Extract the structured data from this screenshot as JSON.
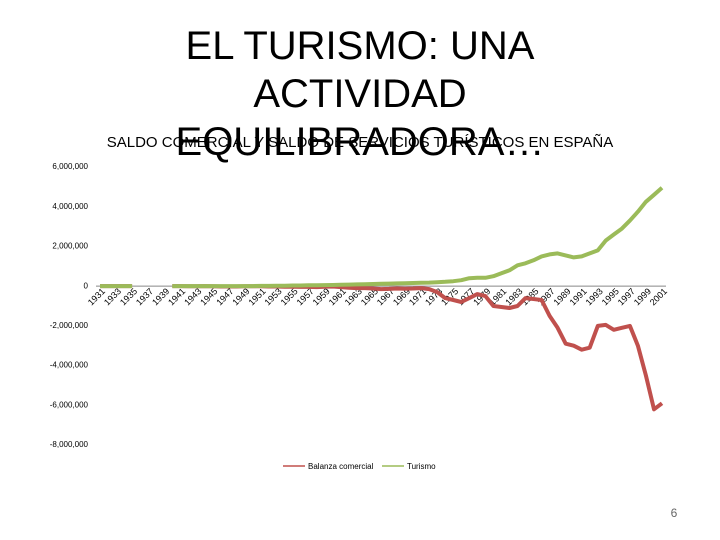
{
  "slide": {
    "title": "EL TURISMO: UNA ACTIVIDAD EQUILIBRADORA…",
    "page_number": "6"
  },
  "chart_data": {
    "type": "line",
    "title": "SALDO COMERCIAL Y SALDO DE SERVICIOS TURÍSTICOS EN ESPAÑA",
    "categories": [
      "1931",
      null,
      "1933",
      null,
      "1935",
      null,
      "1937",
      null,
      "1939",
      null,
      "1941",
      null,
      "1943",
      null,
      "1945",
      null,
      "1947",
      null,
      "1949",
      null,
      "1951",
      null,
      "1953",
      null,
      "1955",
      null,
      "1957",
      null,
      "1959",
      null,
      "1961",
      null,
      "1963",
      null,
      "1965",
      null,
      "1967",
      null,
      "1969",
      null,
      "1971",
      null,
      "1973",
      null,
      "1975",
      null,
      "1977",
      null,
      "1979",
      null,
      "1981",
      null,
      "1983",
      null,
      "1985",
      null,
      "1987",
      null,
      "1989",
      null,
      "1991",
      null,
      "1993",
      null,
      "1995",
      null,
      "1997",
      null,
      "1999",
      null,
      "2001"
    ],
    "series": [
      {
        "name": "Balanza comercial",
        "color": "#c0504d",
        "values": [
          0,
          0,
          0,
          0,
          0,
          null,
          null,
          null,
          null,
          0,
          0,
          -10000,
          -10000,
          0,
          -10000,
          -20000,
          -20000,
          -20000,
          -10000,
          -10000,
          -10000,
          -20000,
          -20000,
          -30000,
          -30000,
          -40000,
          -40000,
          -50000,
          -30000,
          -20000,
          -50000,
          -80000,
          -100000,
          -100000,
          -120000,
          -150000,
          -140000,
          -120000,
          -130000,
          -120000,
          -100000,
          -150000,
          -300000,
          -600000,
          -700000,
          -800000,
          -600000,
          -400000,
          -500000,
          -1000000,
          -1050000,
          -1100000,
          -1000000,
          -600000,
          -650000,
          -700000,
          -1500000,
          -2100000,
          -2900000,
          -3000000,
          -3200000,
          -3100000,
          -2000000,
          -1950000,
          -2200000,
          -2100000,
          -2000000,
          -3000000,
          -4500000,
          -6200000,
          -5900000
        ]
      },
      {
        "name": "Turismo",
        "color": "#9bbb59",
        "values": [
          0,
          0,
          0,
          0,
          0,
          null,
          null,
          null,
          null,
          0,
          0,
          0,
          0,
          0,
          0,
          0,
          0,
          0,
          0,
          0,
          10000,
          10000,
          20000,
          20000,
          30000,
          30000,
          40000,
          40000,
          50000,
          60000,
          70000,
          80000,
          90000,
          100000,
          110000,
          120000,
          130000,
          140000,
          150000,
          160000,
          170000,
          180000,
          200000,
          220000,
          250000,
          300000,
          400000,
          420000,
          420000,
          500000,
          650000,
          800000,
          1050000,
          1150000,
          1300000,
          1500000,
          1600000,
          1650000,
          1550000,
          1450000,
          1500000,
          1650000,
          1800000,
          2300000,
          2600000,
          2900000,
          3300000,
          3750000,
          4250000,
          4600000,
          4950000
        ]
      }
    ],
    "ylim": [
      -8000000,
      6000000
    ],
    "yticks": [
      {
        "value": -8000000,
        "label": "-8,000,000"
      },
      {
        "value": -6000000,
        "label": "-6,000,000"
      },
      {
        "value": -4000000,
        "label": "-4,000,000"
      },
      {
        "value": -2000000,
        "label": "-2,000,000"
      },
      0,
      {
        "value": 2000000,
        "label": "2,000,000"
      },
      {
        "value": 4000000,
        "label": "4,000,000"
      },
      {
        "value": 6000000,
        "label": "6,000,000"
      }
    ],
    "grid": false,
    "legend": "bottom"
  }
}
